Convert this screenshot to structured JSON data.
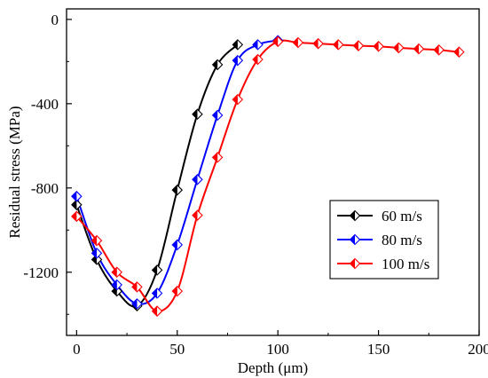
{
  "chart_data": {
    "type": "line",
    "title": "",
    "xlabel": "Depth (μm)",
    "ylabel": "Residual stress (MPa)",
    "xlim": [
      -5,
      200
    ],
    "ylim": [
      -1500,
      50
    ],
    "x_ticks": [
      0,
      50,
      100,
      150,
      200
    ],
    "y_ticks": [
      0,
      -400,
      -800,
      -1200
    ],
    "x_tick_labels": [
      "0",
      "50",
      "100",
      "150",
      "200"
    ],
    "y_tick_labels": [
      "0",
      "-400",
      "-800",
      "-1200"
    ],
    "grid": false,
    "legend_position": "center-right",
    "series": [
      {
        "name": "60 m/s",
        "color": "#000000",
        "x": [
          0,
          10,
          20,
          30,
          40,
          50,
          60,
          70,
          80
        ],
        "y": [
          -880,
          -1140,
          -1290,
          -1360,
          -1190,
          -810,
          -450,
          -215,
          -120
        ]
      },
      {
        "name": "80 m/s",
        "color": "#0000ff",
        "x": [
          0,
          10,
          20,
          30,
          40,
          50,
          60,
          70,
          80,
          90,
          100
        ],
        "y": [
          -840,
          -1110,
          -1260,
          -1350,
          -1300,
          -1070,
          -760,
          -455,
          -195,
          -120,
          -100
        ]
      },
      {
        "name": "100 m/s",
        "color": "#ff0000",
        "x": [
          0,
          10,
          20,
          30,
          40,
          50,
          60,
          70,
          80,
          90,
          100,
          110,
          120,
          130,
          140,
          150,
          160,
          170,
          180,
          190
        ],
        "y": [
          -935,
          -1050,
          -1200,
          -1270,
          -1385,
          -1290,
          -930,
          -655,
          -380,
          -190,
          -105,
          -110,
          -115,
          -120,
          -125,
          -128,
          -135,
          -140,
          -145,
          -155
        ]
      }
    ]
  }
}
